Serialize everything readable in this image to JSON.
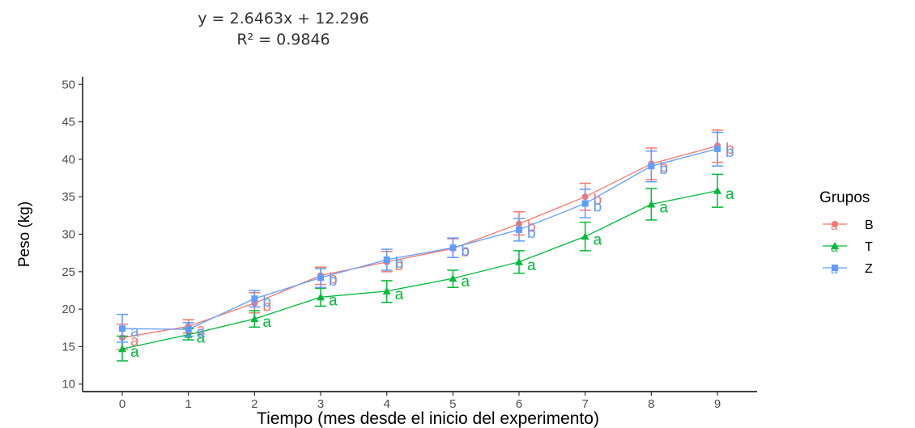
{
  "chart_data": {
    "type": "line",
    "title": "",
    "xlabel": "Tiempo (mes desde el inicio del experimento)",
    "ylabel": "Peso (kg)",
    "x": [
      0,
      1,
      2,
      3,
      4,
      5,
      6,
      7,
      8,
      9
    ],
    "xlim": [
      -0.6,
      9.6
    ],
    "ylim": [
      9,
      51
    ],
    "y_ticks": [
      10,
      15,
      20,
      25,
      30,
      35,
      40,
      45,
      50
    ],
    "grid": false,
    "annotations": {
      "equation": "y = 2.6463x + 12.296",
      "r_squared": "R² = 0.9846"
    },
    "legend": {
      "title": "Grupos",
      "position": "right"
    },
    "series": [
      {
        "name": "B",
        "color": "#F8766D",
        "marker": "circle",
        "values": [
          16.2,
          17.7,
          20.8,
          24.5,
          26.3,
          28.1,
          31.4,
          35.0,
          39.4,
          41.8
        ],
        "error_low": [
          14.6,
          16.8,
          19.5,
          23.3,
          25.0,
          26.9,
          29.9,
          33.2,
          37.3,
          39.6
        ],
        "error_high": [
          18.0,
          18.6,
          22.2,
          25.6,
          27.7,
          29.4,
          33.0,
          36.8,
          41.5,
          43.9
        ],
        "labels": [
          "a",
          "a",
          "b",
          "b",
          "b",
          "b",
          "b",
          "b",
          "b",
          "b"
        ]
      },
      {
        "name": "T",
        "color": "#00BA38",
        "marker": "triangle",
        "values": [
          14.7,
          16.6,
          18.7,
          21.6,
          22.4,
          24.1,
          26.3,
          29.7,
          34.0,
          35.8
        ],
        "error_low": [
          13.1,
          15.9,
          17.6,
          20.4,
          20.9,
          22.9,
          24.8,
          27.8,
          31.9,
          33.6
        ],
        "error_high": [
          16.4,
          17.4,
          19.8,
          22.8,
          23.8,
          25.2,
          27.8,
          31.6,
          36.1,
          38.0
        ],
        "labels": [
          "a",
          "a",
          "a",
          "a",
          "a",
          "a",
          "a",
          "a",
          "a",
          "a"
        ]
      },
      {
        "name": "Z",
        "color": "#619CFF",
        "marker": "square",
        "values": [
          17.4,
          17.3,
          21.4,
          24.2,
          26.6,
          28.2,
          30.6,
          34.1,
          39.1,
          41.4
        ],
        "error_low": [
          15.6,
          16.4,
          20.3,
          22.9,
          25.2,
          26.9,
          29.1,
          32.2,
          37.0,
          39.1
        ],
        "error_high": [
          19.3,
          18.2,
          22.5,
          25.4,
          28.0,
          29.5,
          32.1,
          36.0,
          41.1,
          43.6
        ],
        "labels": [
          "a",
          "a",
          "b",
          "b",
          "b",
          "b",
          "b",
          "b",
          "b",
          "b"
        ]
      }
    ]
  }
}
